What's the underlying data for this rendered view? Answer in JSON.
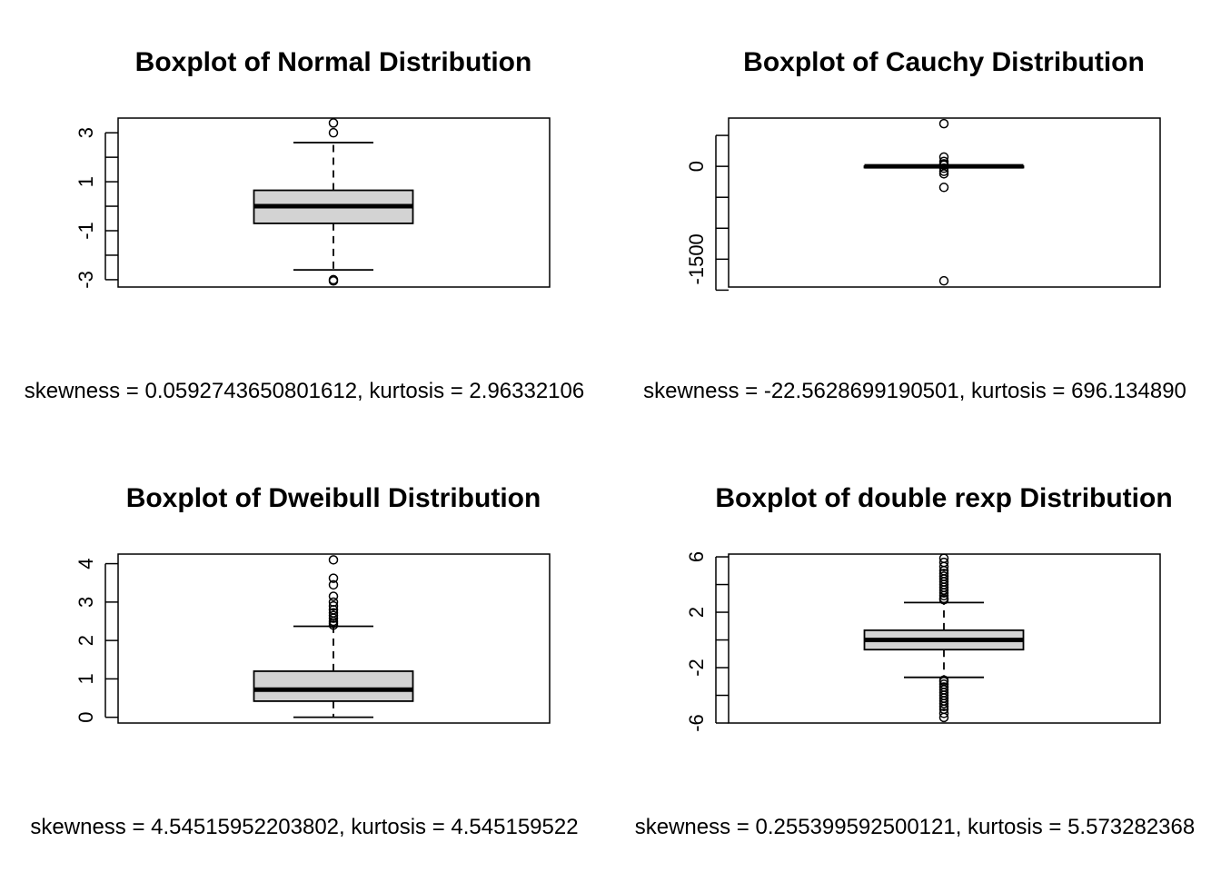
{
  "chart_data": [
    {
      "type": "boxplot",
      "title": "Boxplot of Normal Distribution",
      "yticks": [
        -3,
        -1,
        1,
        3
      ],
      "minor_ticks": [
        -2,
        0,
        2
      ],
      "ylim": [
        -3.3,
        3.6
      ],
      "box": {
        "whisker_low": -2.6,
        "q1": -0.7,
        "median": 0.0,
        "q3": 0.65,
        "whisker_high": 2.6
      },
      "outliers": [
        3.4,
        3.0,
        -3.0,
        -3.05
      ],
      "stats_text": "skewness = 0.0592743650801612, kurtosis = 2.96332106"
    },
    {
      "type": "boxplot",
      "title": "Boxplot of Cauchy Distribution",
      "yticks": [
        0,
        -1500
      ],
      "minor_ticks": [
        500,
        -500,
        -1000,
        -2000
      ],
      "ylim": [
        -1950,
        780
      ],
      "box": {
        "whisker_low": -5,
        "q1": -2,
        "median": 0,
        "q3": 2,
        "whisker_high": 5
      },
      "outliers": [
        690,
        150,
        80,
        40,
        20,
        -30,
        -80,
        -120,
        -340,
        -1850
      ],
      "stats_text": "skewness = -22.5628699190501, kurtosis = 696.134890"
    },
    {
      "type": "boxplot",
      "title": "Boxplot of Dweibull Distribution",
      "yticks": [
        0,
        1,
        2,
        3,
        4
      ],
      "minor_ticks": [],
      "ylim": [
        -0.15,
        4.25
      ],
      "box": {
        "whisker_low": 0.0,
        "q1": 0.42,
        "median": 0.72,
        "q3": 1.2,
        "whisker_high": 2.37
      },
      "outliers": [
        4.1,
        3.62,
        3.45,
        3.15,
        3.0,
        2.9,
        2.8,
        2.72,
        2.65,
        2.58,
        2.5,
        2.45,
        2.4
      ],
      "stats_text": "skewness = 4.54515952203802, kurtosis = 4.545159522"
    },
    {
      "type": "boxplot",
      "title": "Boxplot of double rexp Distribution",
      "yticks": [
        6,
        2,
        -2,
        -6
      ],
      "minor_ticks": [
        4,
        0,
        -4
      ],
      "ylim": [
        -6.0,
        6.2
      ],
      "box": {
        "whisker_low": -2.7,
        "q1": -0.7,
        "median": 0.0,
        "q3": 0.7,
        "whisker_high": 2.7
      },
      "outliers": [
        5.9,
        5.6,
        5.3,
        5.0,
        4.8,
        4.6,
        4.4,
        4.2,
        4.0,
        3.8,
        3.6,
        3.4,
        3.2,
        3.0,
        2.9,
        -2.9,
        -3.0,
        -3.2,
        -3.4,
        -3.6,
        -3.8,
        -4.0,
        -4.2,
        -4.4,
        -4.6,
        -4.8,
        -5.0,
        -5.3,
        -5.6
      ],
      "stats_text": "skewness = 0.255399592500121, kurtosis = 5.573282368"
    }
  ],
  "colors": {
    "box_fill": "#d3d3d3",
    "line": "#000000"
  }
}
